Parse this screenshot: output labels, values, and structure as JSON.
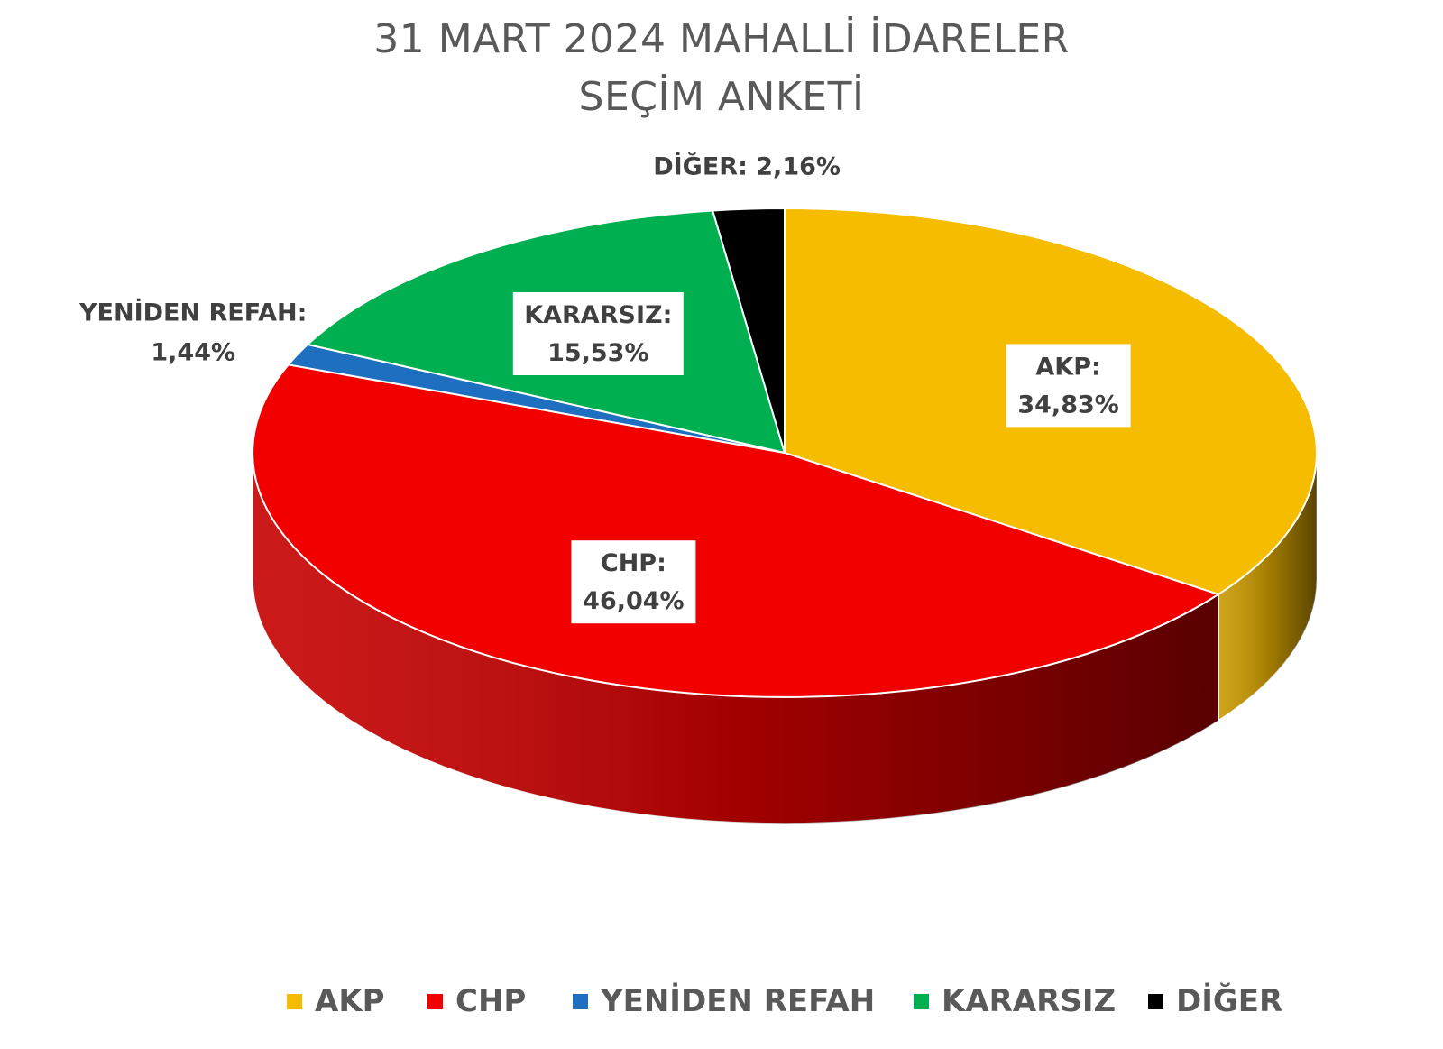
{
  "title_line1": "31 MART 2024 MAHALLİ İDARELER",
  "title_line2": "SEÇİM ANKETİ",
  "chart_data": {
    "type": "pie",
    "title": "31 MART 2024 MAHALLİ İDARELER SEÇİM ANKETİ",
    "style": "3d",
    "legend_position": "bottom",
    "slices": [
      {
        "name": "AKP",
        "value": 34.83,
        "label_name": "AKP:",
        "label_value": "34,83%",
        "color": "#F5BC00"
      },
      {
        "name": "CHP",
        "value": 46.04,
        "label_name": "CHP:",
        "label_value": "46,04%",
        "color": "#F20000"
      },
      {
        "name": "YENİDEN REFAH",
        "value": 1.44,
        "label_name": "YENİDEN REFAH:",
        "label_value": "1,44%",
        "color": "#1F6FC0"
      },
      {
        "name": "KARARSIZ",
        "value": 15.53,
        "label_name": "KARARSIZ:",
        "label_value": "15,53%",
        "color": "#00B050"
      },
      {
        "name": "DİĞER",
        "value": 2.16,
        "label_name": "DİĞER:",
        "label_value": "2,16%",
        "color": "#000000"
      }
    ]
  }
}
